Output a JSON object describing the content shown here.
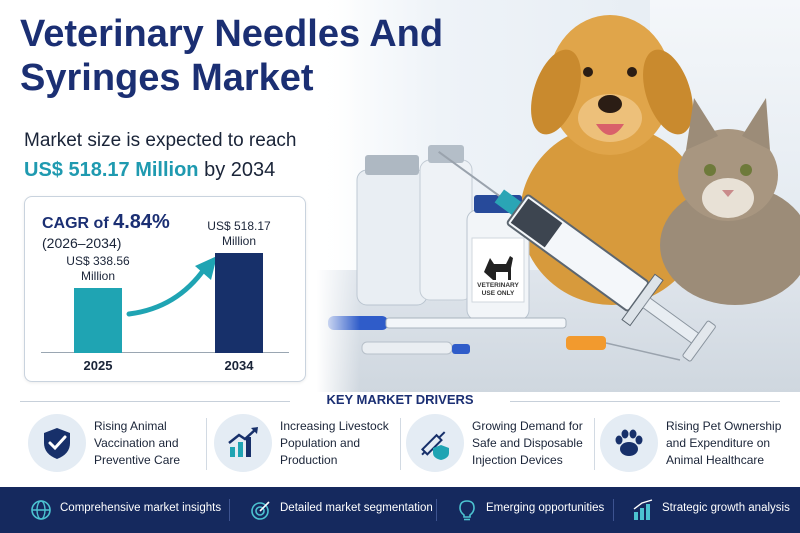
{
  "title": "Veterinary Needles And Syringes Market",
  "subtitle": "Market size is expected to reach",
  "amount": {
    "value": "US$ 518.17 Million",
    "suffix": "by 2034"
  },
  "chart_data": {
    "type": "bar",
    "categories": [
      "2025",
      "2034"
    ],
    "values": [
      338.56,
      518.17
    ],
    "value_labels": [
      "US$ 338.56 Million",
      "US$ 518.17 Million"
    ],
    "cagr_prefix": "CAGR of",
    "cagr_value": "4.84%",
    "cagr_period": "(2026–2034)",
    "colors": [
      "#1fa4b3",
      "#17306a"
    ]
  },
  "vial_label": "VETERINARY USE ONLY",
  "drivers": {
    "heading": "KEY MARKET DRIVERS",
    "items": [
      {
        "icon": "shield-check-icon",
        "label": "Rising Animal Vaccination and Preventive Care"
      },
      {
        "icon": "growth-chart-icon",
        "label": "Increasing Livestock Population and Production"
      },
      {
        "icon": "syringe-shield-icon",
        "label": "Growing Demand for Safe and Disposable Injection Devices"
      },
      {
        "icon": "paw-icon",
        "label": "Rising Pet Ownership and Expenditure on Animal Healthcare"
      }
    ]
  },
  "footer": {
    "items": [
      {
        "icon": "globe-icon",
        "label": "Comprehensive market insights"
      },
      {
        "icon": "target-icon",
        "label": "Detailed market segmentation"
      },
      {
        "icon": "lightbulb-icon",
        "label": "Emerging opportunities"
      },
      {
        "icon": "bar-chart-icon",
        "label": "Strategic growth analysis"
      }
    ]
  },
  "colors": {
    "navy": "#1b2f73",
    "teal": "#1fa4b3",
    "footer_bg": "#15295e"
  }
}
